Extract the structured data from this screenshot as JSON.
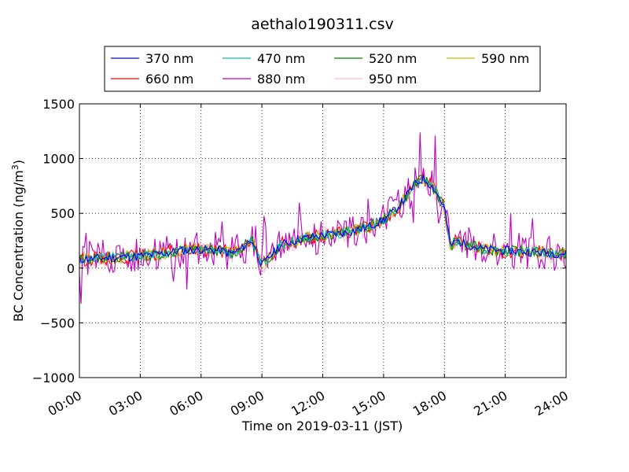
{
  "chart_data": {
    "type": "line",
    "title": "aethalo190311.csv",
    "xlabel": "Time on 2019-03-11 (JST)",
    "ylabel": "BC Concentration (ng/m",
    "ylabel_sup": "3",
    "ylabel_close": ")",
    "xlim_hours": [
      0,
      24
    ],
    "ylim": [
      -1000,
      1500
    ],
    "grid": true,
    "legend_placement": "top, outside plot",
    "x_ticks": [
      {
        "hour": 0,
        "label": "00:00"
      },
      {
        "hour": 3,
        "label": "03:00"
      },
      {
        "hour": 6,
        "label": "06:00"
      },
      {
        "hour": 9,
        "label": "09:00"
      },
      {
        "hour": 12,
        "label": "12:00"
      },
      {
        "hour": 15,
        "label": "15:00"
      },
      {
        "hour": 18,
        "label": "18:00"
      },
      {
        "hour": 21,
        "label": "21:00"
      },
      {
        "hour": 24,
        "label": "24:00"
      }
    ],
    "y_ticks": [
      -1000,
      -500,
      0,
      500,
      1000,
      1500
    ],
    "y_tick_labels": [
      "−1000",
      "−500",
      "0",
      "500",
      "1000",
      "1500"
    ],
    "series": [
      {
        "name": "370 nm",
        "color": "#0000ff",
        "noise": 40,
        "seed": 11
      },
      {
        "name": "470 nm",
        "color": "#00bfbf",
        "noise": 45,
        "seed": 12
      },
      {
        "name": "520 nm",
        "color": "#008000",
        "noise": 50,
        "seed": 13
      },
      {
        "name": "590 nm",
        "color": "#bfbf00",
        "noise": 55,
        "seed": 14
      },
      {
        "name": "660 nm",
        "color": "#ff0000",
        "noise": 65,
        "seed": 15
      },
      {
        "name": "880 nm",
        "color": "#bf00bf",
        "noise": 170,
        "seed": 16
      },
      {
        "name": "950 nm",
        "color": "#ffc0cb",
        "noise": 90,
        "seed": 17
      }
    ],
    "baseline_profile": [
      [
        0.0,
        80
      ],
      [
        1.0,
        90
      ],
      [
        2.0,
        100
      ],
      [
        3.0,
        110
      ],
      [
        4.0,
        130
      ],
      [
        5.0,
        160
      ],
      [
        6.0,
        170
      ],
      [
        7.0,
        160
      ],
      [
        7.5,
        130
      ],
      [
        8.0,
        180
      ],
      [
        8.5,
        260
      ],
      [
        9.0,
        20
      ],
      [
        9.5,
        130
      ],
      [
        10.0,
        220
      ],
      [
        11.0,
        270
      ],
      [
        12.0,
        300
      ],
      [
        13.0,
        320
      ],
      [
        14.0,
        360
      ],
      [
        15.0,
        440
      ],
      [
        15.5,
        520
      ],
      [
        16.0,
        620
      ],
      [
        16.5,
        760
      ],
      [
        17.0,
        820
      ],
      [
        17.5,
        720
      ],
      [
        18.0,
        560
      ],
      [
        18.3,
        200
      ],
      [
        18.6,
        250
      ],
      [
        19.0,
        220
      ],
      [
        20.0,
        170
      ],
      [
        21.0,
        160
      ],
      [
        22.0,
        150
      ],
      [
        23.0,
        140
      ],
      [
        24.0,
        130
      ]
    ]
  }
}
